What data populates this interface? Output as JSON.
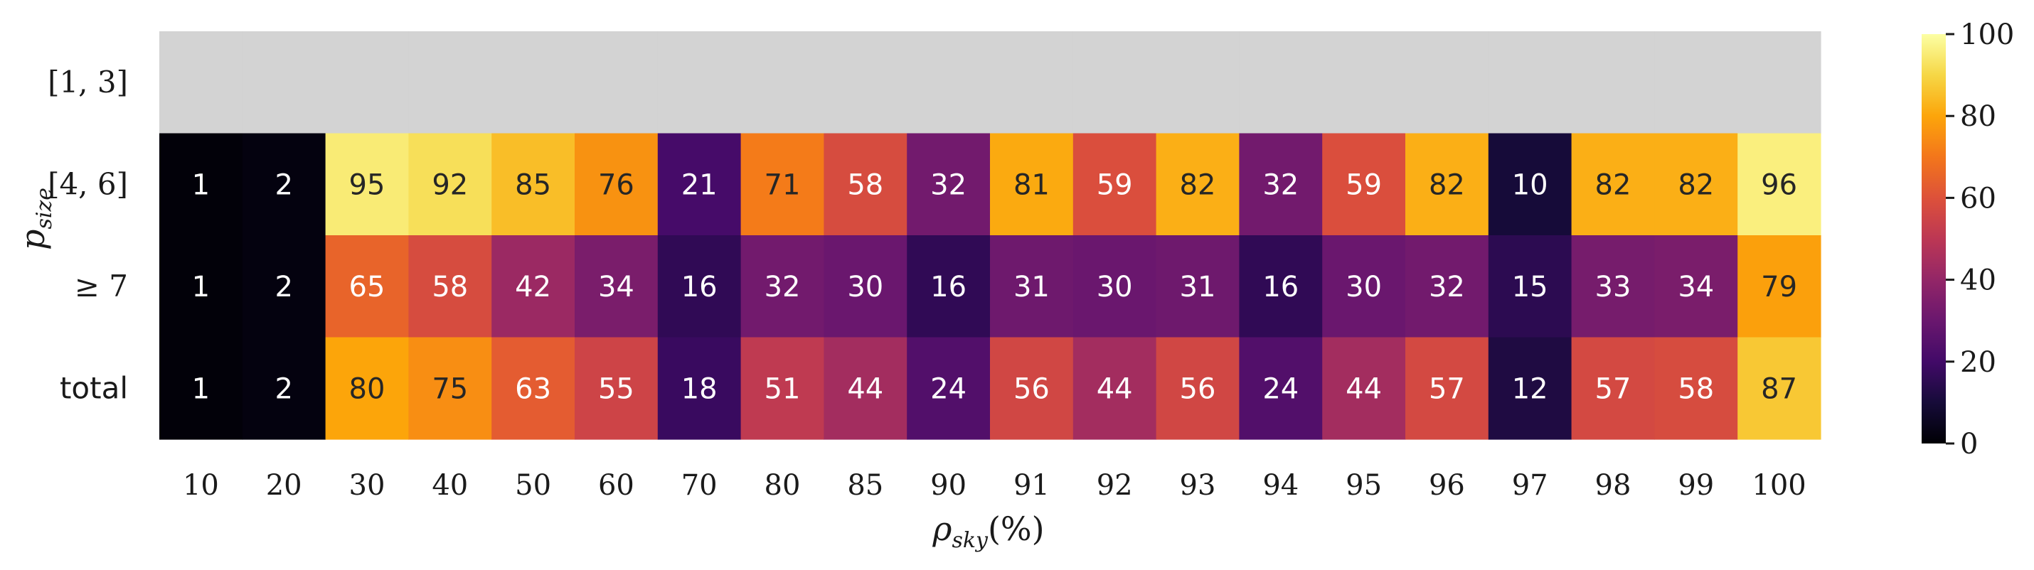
{
  "chart_data": {
    "type": "heatmap",
    "xlabel_main": "ρ",
    "xlabel_sub": "sky",
    "xlabel_unit": "(%)",
    "ylabel_main": "p",
    "ylabel_sub": "size",
    "x_categories": [
      "10",
      "20",
      "30",
      "40",
      "50",
      "60",
      "70",
      "80",
      "85",
      "90",
      "91",
      "92",
      "93",
      "94",
      "95",
      "96",
      "97",
      "98",
      "99",
      "100"
    ],
    "y_categories": [
      "[1, 3]",
      "[4, 6]",
      "≥ 7",
      "total"
    ],
    "values": [
      [
        null,
        null,
        null,
        null,
        null,
        null,
        null,
        null,
        null,
        null,
        null,
        null,
        null,
        null,
        null,
        null,
        null,
        null,
        null,
        null
      ],
      [
        1,
        2,
        95,
        92,
        85,
        76,
        21,
        71,
        58,
        32,
        81,
        59,
        82,
        32,
        59,
        82,
        10,
        82,
        82,
        96
      ],
      [
        1,
        2,
        65,
        58,
        42,
        34,
        16,
        32,
        30,
        16,
        31,
        30,
        31,
        16,
        30,
        32,
        15,
        33,
        34,
        79
      ],
      [
        1,
        2,
        80,
        75,
        63,
        55,
        18,
        51,
        44,
        24,
        56,
        44,
        56,
        24,
        44,
        57,
        12,
        57,
        58,
        87
      ]
    ],
    "colormap": "inferno",
    "missing_color": "#d3d3d3",
    "vmin": 0,
    "vmax": 100,
    "colorbar_ticks": [
      "0",
      "20",
      "40",
      "60",
      "80",
      "100"
    ]
  }
}
